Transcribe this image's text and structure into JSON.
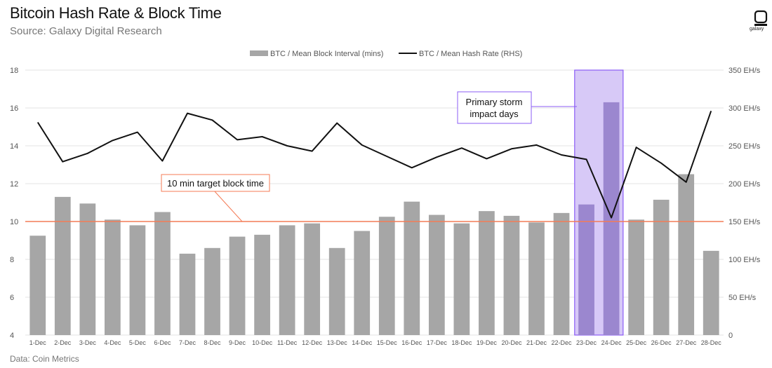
{
  "header": {
    "title": "Bitcoin Hash Rate & Block Time",
    "subtitle": "Source: Galaxy Digital Research",
    "logo_text": "galaxy"
  },
  "footer": {
    "source": "Data: Coin Metrics"
  },
  "colors": {
    "bar": "#a6a6a6",
    "bar_highlight": "#9b87cf",
    "line": "#111111",
    "target_line": "#f47b56",
    "highlight_fill": "#d7c9f7",
    "highlight_stroke": "#8b5cf6"
  },
  "chart_data": {
    "type": "bar",
    "title": "Bitcoin Hash Rate & Block Time",
    "categories": [
      "1-Dec",
      "2-Dec",
      "3-Dec",
      "4-Dec",
      "5-Dec",
      "6-Dec",
      "7-Dec",
      "8-Dec",
      "9-Dec",
      "10-Dec",
      "11-Dec",
      "12-Dec",
      "13-Dec",
      "14-Dec",
      "15-Dec",
      "16-Dec",
      "17-Dec",
      "18-Dec",
      "19-Dec",
      "20-Dec",
      "21-Dec",
      "22-Dec",
      "23-Dec",
      "24-Dec",
      "25-Dec",
      "26-Dec",
      "27-Dec",
      "28-Dec"
    ],
    "series": [
      {
        "name": "BTC / Mean Block Interval (mins)",
        "type": "bar",
        "axis": "left",
        "values": [
          9.25,
          11.3,
          10.95,
          10.1,
          9.8,
          10.5,
          8.3,
          8.6,
          9.2,
          9.3,
          9.8,
          9.9,
          8.6,
          9.5,
          10.25,
          11.05,
          10.35,
          9.9,
          10.55,
          10.3,
          9.95,
          10.45,
          10.9,
          16.3,
          10.1,
          11.15,
          12.5,
          8.45
        ]
      },
      {
        "name": "BTC / Mean Hash Rate (RHS)",
        "type": "line",
        "axis": "right",
        "values": [
          281,
          229,
          240,
          257,
          268,
          230,
          293,
          284,
          258,
          262,
          250,
          243,
          280,
          251,
          236,
          221,
          235,
          247,
          233,
          246,
          251,
          238,
          232,
          155,
          248,
          227,
          202,
          296
        ]
      }
    ],
    "y_left": {
      "min": 4,
      "max": 18,
      "ticks": [
        4,
        6,
        8,
        10,
        12,
        14,
        16,
        18
      ]
    },
    "y_right": {
      "min": 0,
      "max": 350,
      "ticks": [
        0,
        50,
        100,
        150,
        200,
        250,
        300,
        350
      ],
      "tick_labels": [
        "0",
        "50 EH/s",
        "100 EH/s",
        "150 EH/s",
        "200 EH/s",
        "250 EH/s",
        "300 EH/s",
        "350 EH/s"
      ]
    },
    "grid": true,
    "legend": [
      "BTC / Mean Block Interval (mins)",
      "BTC / Mean Hash Rate (RHS)"
    ],
    "legend_position": "top-center",
    "reference_line": {
      "axis": "left",
      "value": 10,
      "label": "10 min target block time"
    },
    "highlight": {
      "from": "23-Dec",
      "to": "24-Dec",
      "label_line1": "Primary storm",
      "label_line2": "impact days"
    }
  }
}
